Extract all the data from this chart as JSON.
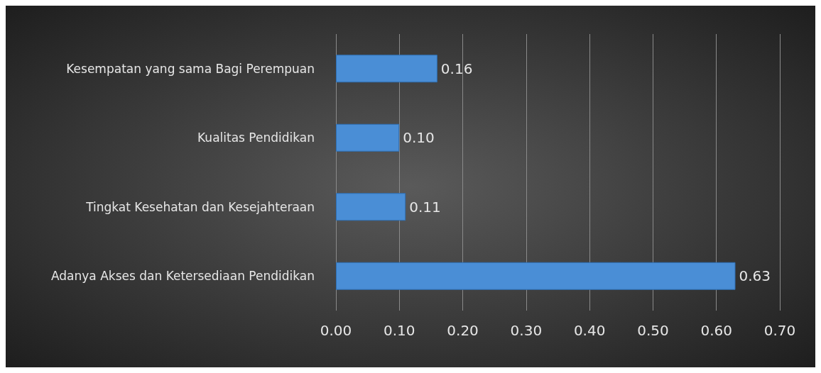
{
  "chart_data": {
    "type": "bar",
    "orientation": "horizontal",
    "categories": [
      "Kesempatan yang sama Bagi Perempuan",
      "Kualitas Pendidikan",
      "Tingkat Kesehatan dan Kesejahteraan",
      "Adanya Akses dan Ketersediaan Pendidikan"
    ],
    "values": [
      0.16,
      0.1,
      0.11,
      0.63
    ],
    "value_labels": [
      "0.16",
      "0.10",
      "0.11",
      "0.63"
    ],
    "color": "#4a8ed6",
    "xlim": [
      0,
      0.7
    ],
    "xticks": [
      {
        "value": 0,
        "label": "0.00"
      },
      {
        "value": 0.1,
        "label": "0.10"
      },
      {
        "value": 0.2,
        "label": "0.20"
      },
      {
        "value": 0.3,
        "label": "0.30"
      },
      {
        "value": 0.4,
        "label": "0.40"
      },
      {
        "value": 0.5,
        "label": "0.50"
      },
      {
        "value": 0.6,
        "label": "0.60"
      },
      {
        "value": 0.7,
        "label": "0.70"
      }
    ],
    "grid": "x"
  }
}
